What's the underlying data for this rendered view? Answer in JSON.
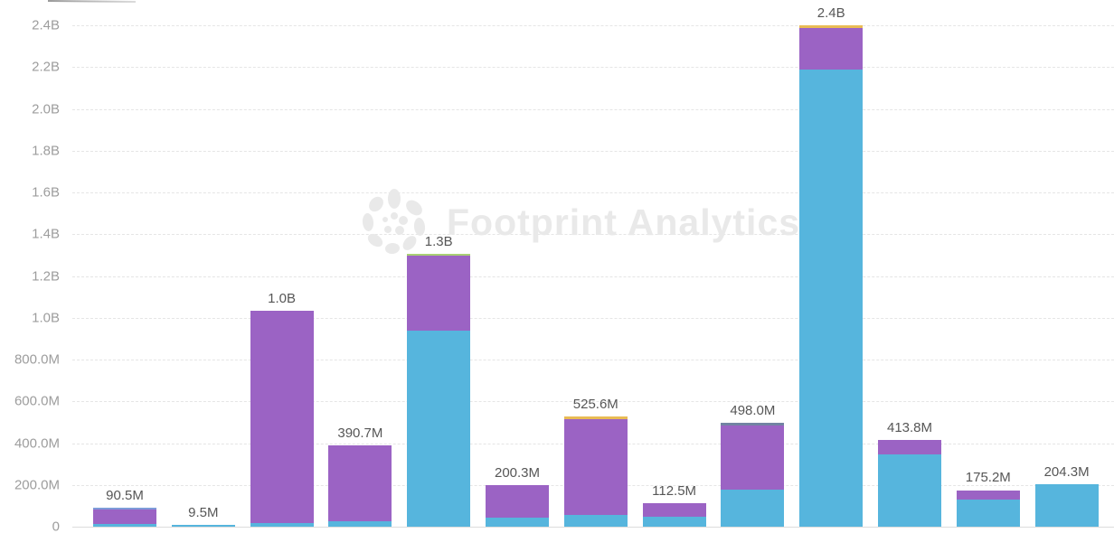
{
  "chart_data": {
    "type": "bar",
    "stacked": true,
    "title": "",
    "watermark": "Footprint Analytics",
    "grid": "horizontal-dashed",
    "legend_position": "none",
    "ylim_m": [
      0,
      2400
    ],
    "series_colors": {
      "blue": "#56b5dd",
      "purple": "#9b63c4",
      "yellow": "#e9bb54",
      "slate": "#7283a3",
      "periwinkle": "#7e9cd9",
      "green": "#a9cf74"
    },
    "y_axis": {
      "ticks": [
        {
          "label": "2.4B",
          "value_m": 2400
        },
        {
          "label": "2.2B",
          "value_m": 2200
        },
        {
          "label": "2.0B",
          "value_m": 2000
        },
        {
          "label": "1.8B",
          "value_m": 1800
        },
        {
          "label": "1.6B",
          "value_m": 1600
        },
        {
          "label": "1.4B",
          "value_m": 1400
        },
        {
          "label": "1.2B",
          "value_m": 1200
        },
        {
          "label": "1.0B",
          "value_m": 1000
        },
        {
          "label": "800.0M",
          "value_m": 800
        },
        {
          "label": "600.0M",
          "value_m": 600
        },
        {
          "label": "400.0M",
          "value_m": 400
        },
        {
          "label": "200.0M",
          "value_m": 200
        },
        {
          "label": "0",
          "value_m": 0
        }
      ]
    },
    "bars": [
      {
        "label": "90.5M",
        "total_m": 90.5,
        "segments": [
          {
            "series": "blue",
            "value_m": 13
          },
          {
            "series": "purple",
            "value_m": 70
          },
          {
            "series": "periwinkle",
            "value_m": 7.5
          }
        ]
      },
      {
        "label": "9.5M",
        "total_m": 9.5,
        "segments": [
          {
            "series": "blue",
            "value_m": 9.5
          }
        ]
      },
      {
        "label": "1.0B",
        "total_m": 1035,
        "segments": [
          {
            "series": "blue",
            "value_m": 17
          },
          {
            "series": "purple",
            "value_m": 1018
          }
        ]
      },
      {
        "label": "390.7M",
        "total_m": 390.7,
        "segments": [
          {
            "series": "blue",
            "value_m": 25
          },
          {
            "series": "purple",
            "value_m": 365.7
          }
        ]
      },
      {
        "label": "1.3B",
        "total_m": 1306,
        "segments": [
          {
            "series": "blue",
            "value_m": 940
          },
          {
            "series": "purple",
            "value_m": 356
          },
          {
            "series": "green",
            "value_m": 10
          }
        ]
      },
      {
        "label": "200.3M",
        "total_m": 200.3,
        "segments": [
          {
            "series": "blue",
            "value_m": 42
          },
          {
            "series": "purple",
            "value_m": 158.3
          }
        ]
      },
      {
        "label": "525.6M",
        "total_m": 525.6,
        "segments": [
          {
            "series": "blue",
            "value_m": 58
          },
          {
            "series": "purple",
            "value_m": 455
          },
          {
            "series": "yellow",
            "value_m": 12.6
          }
        ]
      },
      {
        "label": "112.5M",
        "total_m": 112.5,
        "segments": [
          {
            "series": "blue",
            "value_m": 48
          },
          {
            "series": "purple",
            "value_m": 64.5
          }
        ]
      },
      {
        "label": "498.0M",
        "total_m": 498.0,
        "segments": [
          {
            "series": "blue",
            "value_m": 176
          },
          {
            "series": "purple",
            "value_m": 307
          },
          {
            "series": "slate",
            "value_m": 15
          }
        ]
      },
      {
        "label": "2.4B",
        "total_m": 2400,
        "segments": [
          {
            "series": "blue",
            "value_m": 2188
          },
          {
            "series": "purple",
            "value_m": 199
          },
          {
            "series": "yellow",
            "value_m": 13
          }
        ]
      },
      {
        "label": "413.8M",
        "total_m": 413.8,
        "segments": [
          {
            "series": "blue",
            "value_m": 344
          },
          {
            "series": "purple",
            "value_m": 69.8
          }
        ]
      },
      {
        "label": "175.2M",
        "total_m": 175.2,
        "segments": [
          {
            "series": "blue",
            "value_m": 128
          },
          {
            "series": "purple",
            "value_m": 47.2
          }
        ]
      },
      {
        "label": "204.3M",
        "total_m": 204.3,
        "segments": [
          {
            "series": "blue",
            "value_m": 204.3
          }
        ]
      }
    ]
  }
}
